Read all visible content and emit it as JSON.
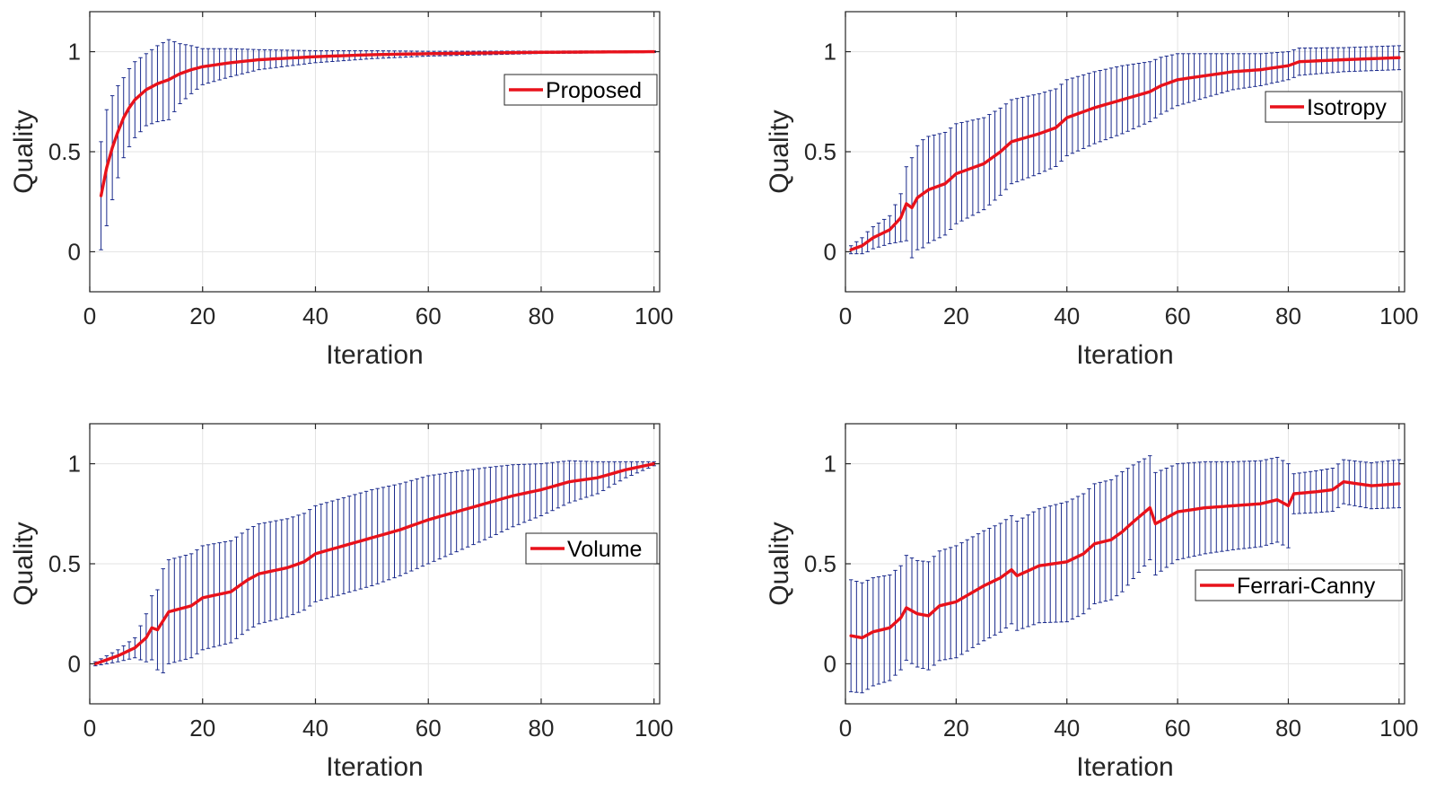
{
  "figure": {
    "colors": {
      "mean_line": "#e8121b",
      "error_bar": "#1a2a8c",
      "grid": "#e3e3e3",
      "axes": "#262626"
    }
  },
  "chart_data": [
    {
      "type": "line",
      "legend": "Proposed",
      "legend_location": "right, upper-middle",
      "xlabel": "Iteration",
      "ylabel": "Quality",
      "xlim": [
        0,
        101
      ],
      "ylim": [
        -0.2,
        1.2
      ],
      "xticks": [
        "0",
        "20",
        "40",
        "60",
        "80",
        "100"
      ],
      "yticks": [
        "0",
        "0.5",
        "1"
      ],
      "error_bars": true,
      "x_start": 2,
      "x_end": 100,
      "mean_keypoints": [
        [
          2,
          0.28
        ],
        [
          3,
          0.42
        ],
        [
          4,
          0.52
        ],
        [
          5,
          0.6
        ],
        [
          6,
          0.67
        ],
        [
          7,
          0.72
        ],
        [
          8,
          0.76
        ],
        [
          10,
          0.81
        ],
        [
          12,
          0.84
        ],
        [
          14,
          0.86
        ],
        [
          16,
          0.89
        ],
        [
          18,
          0.91
        ],
        [
          20,
          0.925
        ],
        [
          25,
          0.945
        ],
        [
          30,
          0.96
        ],
        [
          40,
          0.975
        ],
        [
          50,
          0.985
        ],
        [
          60,
          0.99
        ],
        [
          80,
          0.997
        ],
        [
          100,
          1.0
        ]
      ],
      "error_keypoints": [
        [
          2,
          0.27
        ],
        [
          3,
          0.29
        ],
        [
          4,
          0.26
        ],
        [
          6,
          0.2
        ],
        [
          8,
          0.19
        ],
        [
          10,
          0.18
        ],
        [
          12,
          0.19
        ],
        [
          14,
          0.2
        ],
        [
          16,
          0.15
        ],
        [
          20,
          0.09
        ],
        [
          25,
          0.07
        ],
        [
          30,
          0.05
        ],
        [
          40,
          0.03
        ],
        [
          50,
          0.02
        ],
        [
          60,
          0.012
        ],
        [
          80,
          0.006
        ],
        [
          100,
          0.004
        ]
      ]
    },
    {
      "type": "line",
      "legend": "Isotropy",
      "legend_location": "right, upper",
      "xlabel": "Iteration",
      "ylabel": "Quality",
      "xlim": [
        0,
        101
      ],
      "ylim": [
        -0.2,
        1.2
      ],
      "xticks": [
        "0",
        "20",
        "40",
        "60",
        "80",
        "100"
      ],
      "yticks": [
        "0",
        "0.5",
        "1"
      ],
      "error_bars": true,
      "x_start": 1,
      "x_end": 100,
      "mean_keypoints": [
        [
          1,
          0.01
        ],
        [
          3,
          0.03
        ],
        [
          5,
          0.07
        ],
        [
          8,
          0.11
        ],
        [
          10,
          0.17
        ],
        [
          11,
          0.24
        ],
        [
          12,
          0.22
        ],
        [
          13,
          0.27
        ],
        [
          15,
          0.31
        ],
        [
          18,
          0.34
        ],
        [
          20,
          0.39
        ],
        [
          25,
          0.44
        ],
        [
          28,
          0.5
        ],
        [
          30,
          0.55
        ],
        [
          35,
          0.59
        ],
        [
          38,
          0.62
        ],
        [
          40,
          0.67
        ],
        [
          45,
          0.72
        ],
        [
          50,
          0.76
        ],
        [
          55,
          0.8
        ],
        [
          57,
          0.83
        ],
        [
          60,
          0.86
        ],
        [
          65,
          0.88
        ],
        [
          70,
          0.9
        ],
        [
          75,
          0.91
        ],
        [
          80,
          0.93
        ],
        [
          82,
          0.95
        ],
        [
          90,
          0.96
        ],
        [
          100,
          0.97
        ]
      ],
      "error_keypoints": [
        [
          1,
          0.02
        ],
        [
          4,
          0.05
        ],
        [
          8,
          0.07
        ],
        [
          10,
          0.12
        ],
        [
          12,
          0.25
        ],
        [
          14,
          0.27
        ],
        [
          20,
          0.25
        ],
        [
          30,
          0.21
        ],
        [
          40,
          0.19
        ],
        [
          50,
          0.17
        ],
        [
          60,
          0.13
        ],
        [
          70,
          0.09
        ],
        [
          80,
          0.07
        ],
        [
          90,
          0.06
        ],
        [
          100,
          0.06
        ]
      ]
    },
    {
      "type": "line",
      "legend": "Volume",
      "legend_location": "right, middle",
      "xlabel": "Iteration",
      "ylabel": "Quality",
      "xlim": [
        0,
        101
      ],
      "ylim": [
        -0.2,
        1.2
      ],
      "xticks": [
        "0",
        "20",
        "40",
        "60",
        "80",
        "100"
      ],
      "yticks": [
        "0",
        "0.5",
        "1"
      ],
      "error_bars": true,
      "x_start": 1,
      "x_end": 100,
      "mean_keypoints": [
        [
          1,
          0.0
        ],
        [
          3,
          0.02
        ],
        [
          5,
          0.04
        ],
        [
          8,
          0.08
        ],
        [
          10,
          0.13
        ],
        [
          11,
          0.18
        ],
        [
          12,
          0.17
        ],
        [
          14,
          0.26
        ],
        [
          18,
          0.29
        ],
        [
          20,
          0.33
        ],
        [
          25,
          0.36
        ],
        [
          28,
          0.42
        ],
        [
          30,
          0.45
        ],
        [
          35,
          0.48
        ],
        [
          38,
          0.51
        ],
        [
          40,
          0.55
        ],
        [
          45,
          0.59
        ],
        [
          50,
          0.63
        ],
        [
          55,
          0.67
        ],
        [
          60,
          0.72
        ],
        [
          65,
          0.76
        ],
        [
          70,
          0.8
        ],
        [
          75,
          0.84
        ],
        [
          80,
          0.87
        ],
        [
          85,
          0.91
        ],
        [
          90,
          0.93
        ],
        [
          95,
          0.97
        ],
        [
          100,
          1.0
        ]
      ],
      "error_keypoints": [
        [
          1,
          0.01
        ],
        [
          5,
          0.03
        ],
        [
          8,
          0.05
        ],
        [
          10,
          0.12
        ],
        [
          12,
          0.2
        ],
        [
          13,
          0.26
        ],
        [
          20,
          0.26
        ],
        [
          30,
          0.25
        ],
        [
          40,
          0.24
        ],
        [
          50,
          0.24
        ],
        [
          60,
          0.22
        ],
        [
          70,
          0.18
        ],
        [
          80,
          0.13
        ],
        [
          90,
          0.08
        ],
        [
          95,
          0.04
        ],
        [
          100,
          0.01
        ]
      ]
    },
    {
      "type": "line",
      "legend": "Ferrari-Canny",
      "legend_location": "right, middle",
      "xlabel": "Iteration",
      "ylabel": "Quality",
      "xlim": [
        0,
        101
      ],
      "ylim": [
        -0.2,
        1.2
      ],
      "xticks": [
        "0",
        "20",
        "40",
        "60",
        "80",
        "100"
      ],
      "yticks": [
        "0",
        "0.5",
        "1"
      ],
      "error_bars": true,
      "x_start": 1,
      "x_end": 100,
      "mean_keypoints": [
        [
          1,
          0.14
        ],
        [
          3,
          0.13
        ],
        [
          5,
          0.16
        ],
        [
          8,
          0.18
        ],
        [
          10,
          0.23
        ],
        [
          11,
          0.28
        ],
        [
          13,
          0.25
        ],
        [
          15,
          0.24
        ],
        [
          17,
          0.29
        ],
        [
          20,
          0.31
        ],
        [
          25,
          0.39
        ],
        [
          28,
          0.43
        ],
        [
          30,
          0.47
        ],
        [
          31,
          0.44
        ],
        [
          35,
          0.49
        ],
        [
          40,
          0.51
        ],
        [
          43,
          0.55
        ],
        [
          45,
          0.6
        ],
        [
          48,
          0.62
        ],
        [
          50,
          0.66
        ],
        [
          52,
          0.71
        ],
        [
          55,
          0.78
        ],
        [
          56,
          0.7
        ],
        [
          60,
          0.76
        ],
        [
          65,
          0.78
        ],
        [
          70,
          0.79
        ],
        [
          75,
          0.8
        ],
        [
          78,
          0.82
        ],
        [
          80,
          0.79
        ],
        [
          81,
          0.85
        ],
        [
          85,
          0.86
        ],
        [
          88,
          0.87
        ],
        [
          90,
          0.91
        ],
        [
          95,
          0.89
        ],
        [
          100,
          0.9
        ]
      ],
      "error_keypoints": [
        [
          1,
          0.28
        ],
        [
          5,
          0.27
        ],
        [
          10,
          0.26
        ],
        [
          15,
          0.27
        ],
        [
          20,
          0.28
        ],
        [
          30,
          0.27
        ],
        [
          40,
          0.3
        ],
        [
          50,
          0.3
        ],
        [
          55,
          0.26
        ],
        [
          60,
          0.24
        ],
        [
          70,
          0.22
        ],
        [
          80,
          0.21
        ],
        [
          81,
          0.1
        ],
        [
          90,
          0.11
        ],
        [
          100,
          0.12
        ]
      ]
    }
  ]
}
